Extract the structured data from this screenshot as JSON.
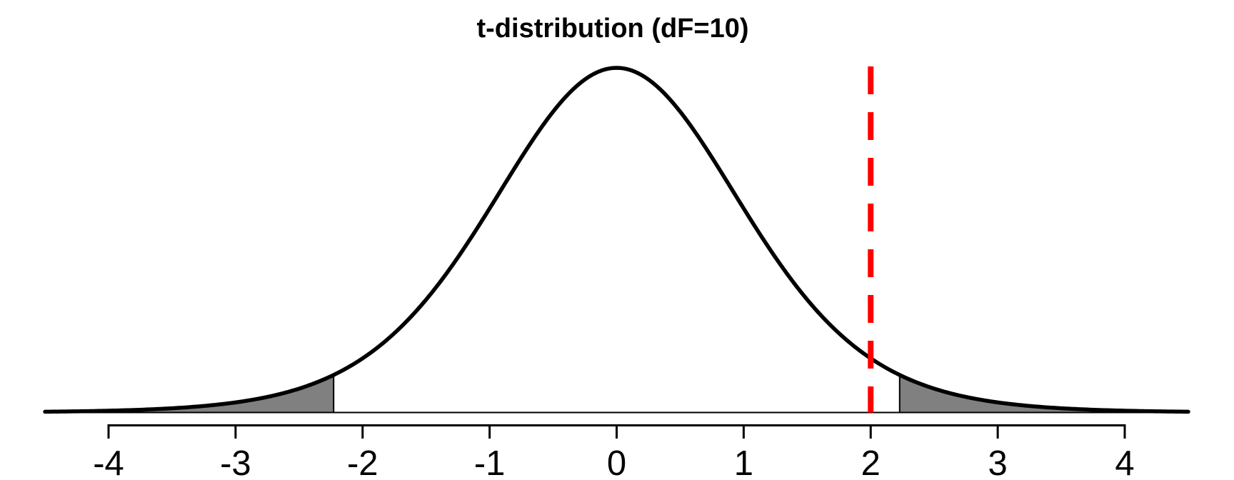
{
  "chart_data": {
    "type": "area",
    "title": "t-distribution (dF=10)",
    "distribution": "student-t",
    "df": 10,
    "curve_x_range": [
      -4.5,
      4.5
    ],
    "axis_range": [
      -4,
      4
    ],
    "x_ticks": [
      -4,
      -3,
      -2,
      -1,
      0,
      1,
      2,
      3,
      4
    ],
    "critical_value": 2.228,
    "shaded_regions": [
      [
        -4.5,
        -2.228
      ],
      [
        2.228,
        4.5
      ]
    ],
    "vline_x": 2,
    "ylim": [
      0,
      0.41
    ],
    "grid": "off",
    "legend": "none",
    "colors": {
      "curve": "#000000",
      "shade_fill": "#808080",
      "shade_border": "#000000",
      "vline": "#FF0000",
      "axis": "#000000",
      "text": "#000000",
      "background": "#FFFFFF"
    }
  }
}
